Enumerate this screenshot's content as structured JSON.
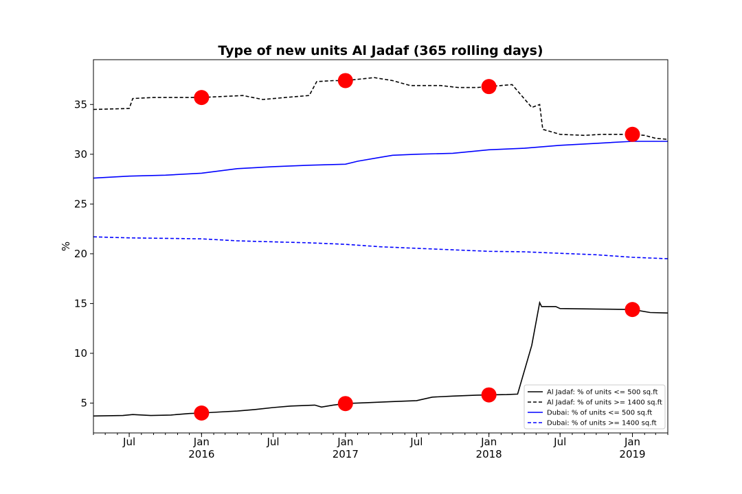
{
  "chart_data": {
    "type": "line",
    "title": "Type of new units Al Jadaf (365 rolling days)",
    "xlabel": "",
    "ylabel": "%",
    "x_axis": "date",
    "xlim": [
      "2015-04-01",
      "2019-04-01"
    ],
    "ylim": [
      2,
      39.5
    ],
    "y_ticks": [
      5,
      10,
      15,
      20,
      25,
      30,
      35
    ],
    "x_ticks": [
      {
        "date": "2015-07-01",
        "label": "Jul",
        "sublabel": ""
      },
      {
        "date": "2016-01-01",
        "label": "Jan",
        "sublabel": "2016"
      },
      {
        "date": "2016-07-01",
        "label": "Jul",
        "sublabel": ""
      },
      {
        "date": "2017-01-01",
        "label": "Jan",
        "sublabel": "2017"
      },
      {
        "date": "2017-07-01",
        "label": "Jul",
        "sublabel": ""
      },
      {
        "date": "2018-01-01",
        "label": "Jan",
        "sublabel": "2018"
      },
      {
        "date": "2018-07-01",
        "label": "Jul",
        "sublabel": ""
      },
      {
        "date": "2019-01-01",
        "label": "Jan",
        "sublabel": "2019"
      }
    ],
    "legend_position": "lower-right",
    "series": [
      {
        "name": "Al Jadaf: % of units <= 500 sq.ft",
        "color": "#000000",
        "dash": "solid",
        "points": [
          [
            "2015-04-01",
            3.7
          ],
          [
            "2015-06-15",
            3.75
          ],
          [
            "2015-07-10",
            3.85
          ],
          [
            "2015-08-25",
            3.75
          ],
          [
            "2015-10-15",
            3.8
          ],
          [
            "2015-12-01",
            3.95
          ],
          [
            "2016-01-01",
            4.0
          ],
          [
            "2016-02-15",
            4.1
          ],
          [
            "2016-04-01",
            4.2
          ],
          [
            "2016-05-15",
            4.35
          ],
          [
            "2016-07-01",
            4.55
          ],
          [
            "2016-08-15",
            4.7
          ],
          [
            "2016-10-15",
            4.8
          ],
          [
            "2016-11-01",
            4.6
          ],
          [
            "2016-12-01",
            4.8
          ],
          [
            "2017-01-01",
            4.95
          ],
          [
            "2017-03-01",
            5.05
          ],
          [
            "2017-05-01",
            5.15
          ],
          [
            "2017-07-01",
            5.25
          ],
          [
            "2017-08-10",
            5.6
          ],
          [
            "2017-10-01",
            5.7
          ],
          [
            "2017-12-01",
            5.8
          ],
          [
            "2018-01-01",
            5.82
          ],
          [
            "2018-02-15",
            5.85
          ],
          [
            "2018-03-15",
            5.9
          ],
          [
            "2018-04-20",
            10.8
          ],
          [
            "2018-05-10",
            15.1
          ],
          [
            "2018-05-15",
            14.7
          ],
          [
            "2018-06-20",
            14.7
          ],
          [
            "2018-07-01",
            14.5
          ],
          [
            "2018-10-01",
            14.45
          ],
          [
            "2019-01-01",
            14.4
          ],
          [
            "2019-02-15",
            14.1
          ],
          [
            "2019-04-01",
            14.05
          ]
        ]
      },
      {
        "name": "Al Jadaf: % of units >= 1400 sq.ft",
        "color": "#000000",
        "dash": "dashed",
        "points": [
          [
            "2015-04-01",
            34.5
          ],
          [
            "2015-07-01",
            34.6
          ],
          [
            "2015-07-10",
            35.6
          ],
          [
            "2015-09-01",
            35.7
          ],
          [
            "2016-01-01",
            35.7
          ],
          [
            "2016-04-15",
            35.9
          ],
          [
            "2016-06-05",
            35.5
          ],
          [
            "2016-08-01",
            35.7
          ],
          [
            "2016-10-01",
            35.9
          ],
          [
            "2016-10-20",
            37.3
          ],
          [
            "2016-12-01",
            37.4
          ],
          [
            "2017-01-01",
            37.4
          ],
          [
            "2017-03-15",
            37.7
          ],
          [
            "2017-05-01",
            37.4
          ],
          [
            "2017-06-15",
            36.9
          ],
          [
            "2017-09-01",
            36.9
          ],
          [
            "2017-10-15",
            36.7
          ],
          [
            "2017-12-01",
            36.7
          ],
          [
            "2018-01-01",
            36.8
          ],
          [
            "2018-03-01",
            37.0
          ],
          [
            "2018-04-20",
            34.7
          ],
          [
            "2018-05-10",
            35.0
          ],
          [
            "2018-05-18",
            32.5
          ],
          [
            "2018-07-01",
            32.0
          ],
          [
            "2018-09-01",
            31.9
          ],
          [
            "2018-10-15",
            32.0
          ],
          [
            "2019-01-01",
            32.0
          ],
          [
            "2019-02-01",
            31.9
          ],
          [
            "2019-03-01",
            31.6
          ],
          [
            "2019-04-01",
            31.5
          ]
        ]
      },
      {
        "name": "Dubai: % of units <= 500 sq.ft",
        "color": "#0000ff",
        "dash": "solid",
        "points": [
          [
            "2015-04-01",
            27.6
          ],
          [
            "2015-07-01",
            27.8
          ],
          [
            "2015-10-01",
            27.9
          ],
          [
            "2016-01-01",
            28.1
          ],
          [
            "2016-04-01",
            28.55
          ],
          [
            "2016-07-01",
            28.75
          ],
          [
            "2016-10-01",
            28.9
          ],
          [
            "2017-01-01",
            29.0
          ],
          [
            "2017-02-01",
            29.3
          ],
          [
            "2017-04-01",
            29.7
          ],
          [
            "2017-05-01",
            29.9
          ],
          [
            "2017-07-01",
            30.0
          ],
          [
            "2017-10-01",
            30.1
          ],
          [
            "2018-01-01",
            30.45
          ],
          [
            "2018-04-01",
            30.6
          ],
          [
            "2018-07-01",
            30.9
          ],
          [
            "2018-10-01",
            31.1
          ],
          [
            "2019-01-01",
            31.3
          ],
          [
            "2019-04-01",
            31.3
          ]
        ]
      },
      {
        "name": "Dubai: % of units >= 1400 sq.ft",
        "color": "#0000ff",
        "dash": "dashed",
        "points": [
          [
            "2015-04-01",
            21.7
          ],
          [
            "2015-07-01",
            21.6
          ],
          [
            "2015-10-01",
            21.55
          ],
          [
            "2016-01-01",
            21.5
          ],
          [
            "2016-04-01",
            21.3
          ],
          [
            "2016-07-01",
            21.2
          ],
          [
            "2016-10-01",
            21.1
          ],
          [
            "2017-01-01",
            20.95
          ],
          [
            "2017-04-01",
            20.7
          ],
          [
            "2017-07-01",
            20.55
          ],
          [
            "2017-10-01",
            20.4
          ],
          [
            "2018-01-01",
            20.25
          ],
          [
            "2018-04-01",
            20.2
          ],
          [
            "2018-07-01",
            20.05
          ],
          [
            "2018-10-01",
            19.9
          ],
          [
            "2019-01-01",
            19.65
          ],
          [
            "2019-04-01",
            19.5
          ]
        ]
      }
    ],
    "markers": {
      "color": "#ff0000",
      "points": [
        [
          "2016-01-01",
          35.7
        ],
        [
          "2017-01-01",
          37.4
        ],
        [
          "2018-01-01",
          36.8
        ],
        [
          "2019-01-01",
          32.0
        ],
        [
          "2016-01-01",
          4.0
        ],
        [
          "2017-01-01",
          4.95
        ],
        [
          "2018-01-01",
          5.82
        ],
        [
          "2019-01-01",
          14.4
        ]
      ]
    }
  }
}
